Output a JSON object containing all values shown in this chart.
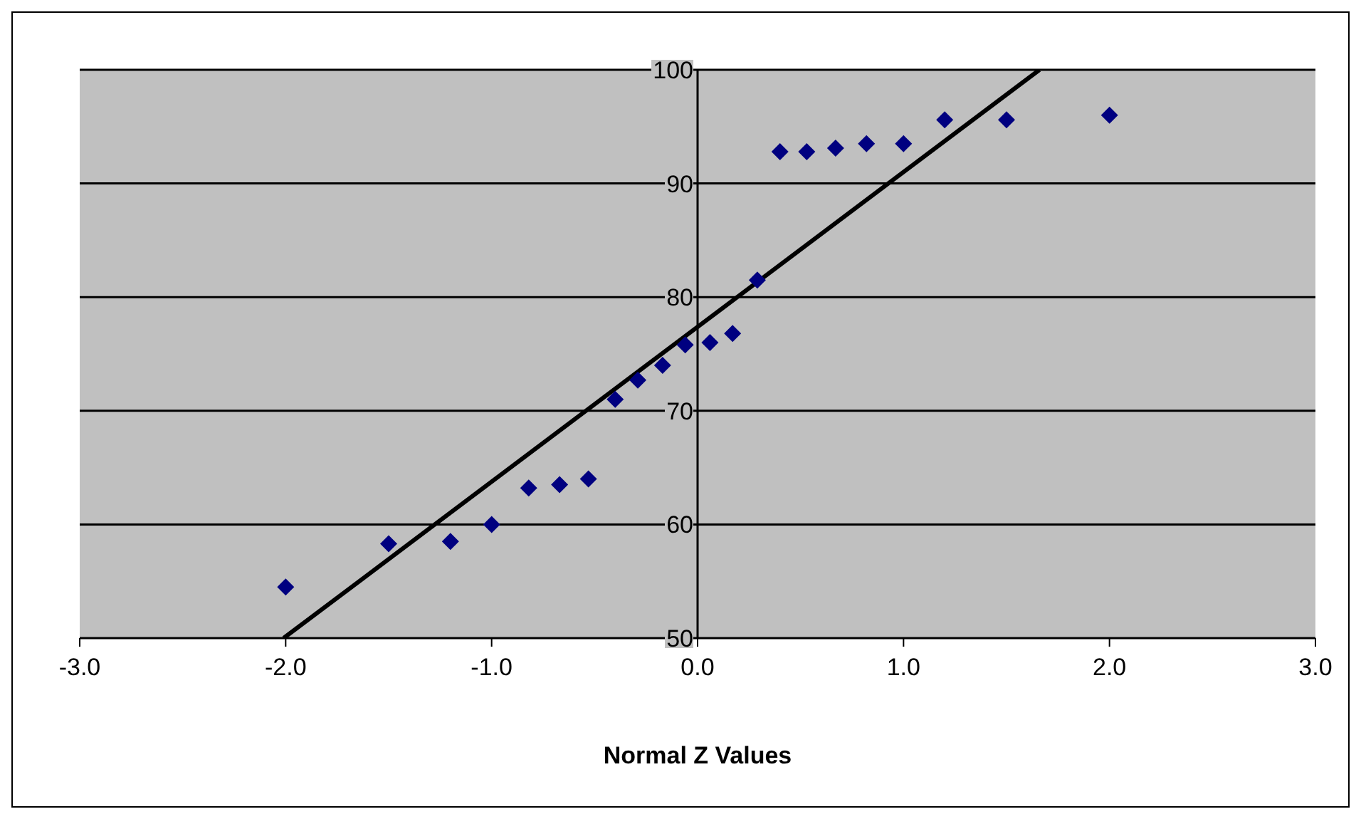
{
  "chart_data": {
    "type": "scatter",
    "xlabel": "Normal Z Values",
    "xlim": [
      -3,
      3
    ],
    "xticks": [
      {
        "value": -3,
        "label": "-3.0"
      },
      {
        "value": -2,
        "label": "-2.0"
      },
      {
        "value": -1,
        "label": "-1.0"
      },
      {
        "value": 0,
        "label": "0.0"
      },
      {
        "value": 1,
        "label": "1.0"
      },
      {
        "value": 2,
        "label": "2.0"
      },
      {
        "value": 3,
        "label": "3.0"
      }
    ],
    "ylim": [
      50,
      100
    ],
    "yticks": [
      50,
      60,
      70,
      80,
      90,
      100
    ],
    "grid": "y",
    "legend": false,
    "series": [
      {
        "color": "#000080",
        "marker": "diamond",
        "x": [
          -2.0,
          -1.5,
          -1.2,
          -1.0,
          -0.82,
          -0.67,
          -0.53,
          -0.4,
          -0.29,
          -0.17,
          -0.06,
          0.06,
          0.17,
          0.29,
          0.4,
          0.53,
          0.67,
          0.82,
          1.0,
          1.2,
          1.5,
          2.0
        ],
        "values": [
          54.5,
          58.3,
          58.5,
          60.0,
          63.2,
          63.5,
          64.0,
          71.0,
          72.7,
          74.0,
          75.8,
          76.0,
          76.8,
          81.5,
          92.8,
          92.8,
          93.1,
          93.5,
          93.5,
          95.6,
          95.6,
          96.0
        ]
      },
      {
        "type": "line",
        "color": "#000000",
        "marker": "none",
        "line_style": "solid",
        "x": [
          -2.01,
          1.66
        ],
        "values": [
          50,
          100
        ]
      }
    ]
  }
}
